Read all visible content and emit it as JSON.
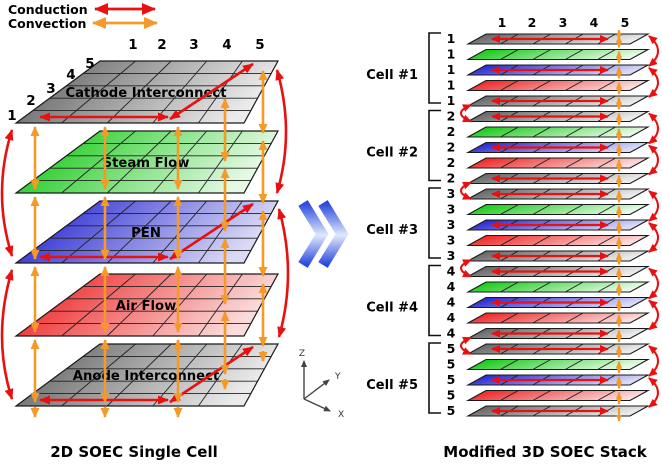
{
  "legend": {
    "conduction_label": "Conduction",
    "convection_label": "Convection",
    "conduction_color": "#e81010",
    "convection_color": "#f59a28"
  },
  "left_diagram": {
    "caption": "2D SOEC Single Cell",
    "top_numbers": [
      "1",
      "2",
      "3",
      "4",
      "5"
    ],
    "side_numbers": [
      "1",
      "2",
      "3",
      "4",
      "5"
    ],
    "layers": [
      {
        "name": "cathode-interconnect",
        "label": "Cathode Interconnect",
        "color_start": "#565656",
        "color_end": "#ebebeb",
        "conductive": true
      },
      {
        "name": "steam-flow",
        "label": "Steam Flow",
        "color_start": "#00c400",
        "color_end": "#e6f9e6",
        "conductive": false
      },
      {
        "name": "pen",
        "label": "PEN",
        "color_start": "#1313cd",
        "color_end": "#dadaf6",
        "conductive": true
      },
      {
        "name": "air-flow",
        "label": "Air Flow",
        "color_start": "#ed1111",
        "color_end": "#fadcdc",
        "conductive": false
      },
      {
        "name": "anode-interconnect",
        "label": "Anode Interconnect",
        "color_start": "#565656",
        "color_end": "#ebebeb",
        "conductive": true
      }
    ],
    "axes": {
      "x_label": "X",
      "y_label": "Y",
      "z_label": "Z"
    }
  },
  "transform_arrow": {
    "color_dark": "#2746dd",
    "color_light": "#dfe8fc"
  },
  "right_diagram": {
    "caption": "Modified 3D SOEC Stack",
    "top_numbers": [
      "1",
      "2",
      "3",
      "4",
      "5"
    ],
    "cells": [
      {
        "label": "Cell #1",
        "layer_number": "1"
      },
      {
        "label": "Cell #2",
        "layer_number": "2"
      },
      {
        "label": "Cell #3",
        "layer_number": "3"
      },
      {
        "label": "Cell #4",
        "layer_number": "4"
      },
      {
        "label": "Cell #5",
        "layer_number": "5"
      }
    ]
  }
}
